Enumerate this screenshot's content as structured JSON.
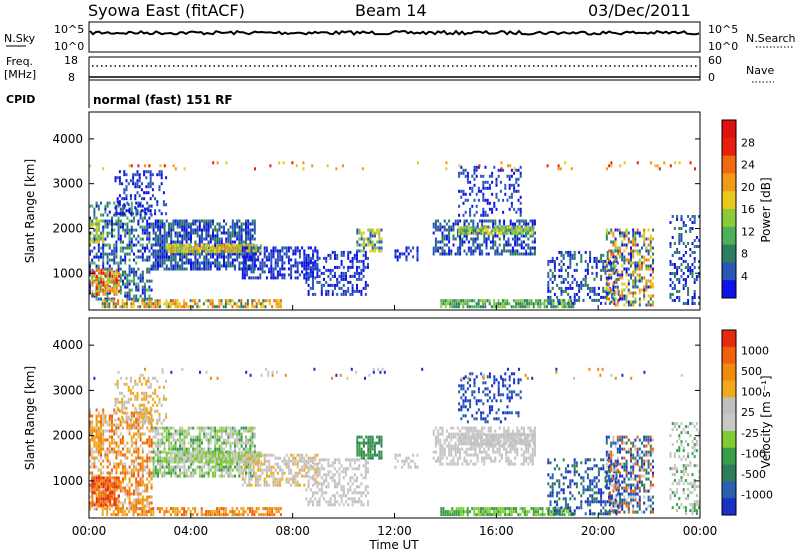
{
  "header": {
    "station": "Syowa East (fitACF)",
    "beam": "Beam 14",
    "date": "03/Dec/2011"
  },
  "noise_panel": {
    "left_label": "N.Sky",
    "right_label": "N.Search",
    "left_ticks": [
      "10^5",
      "10^0"
    ],
    "right_ticks": [
      "10^5",
      "10^0"
    ]
  },
  "freq_panel": {
    "left_label_line1": "Freq.",
    "left_label_line2": "[MHz]",
    "right_label": "Nave",
    "left_ticks": [
      "18",
      "8"
    ],
    "right_ticks": [
      "60",
      "0"
    ]
  },
  "cpid_panel": {
    "label": "CPID",
    "text": "normal (fast) 151 RF"
  },
  "x_axis": {
    "title": "Time UT",
    "tick_labels": [
      "00:00",
      "04:00",
      "08:00",
      "12:00",
      "16:00",
      "20:00",
      "00:00"
    ]
  },
  "power_panel": {
    "ylabel": "Slant Range [km]",
    "yticks": [
      "1000",
      "2000",
      "3000",
      "4000"
    ],
    "colorbar_label": "Power [dB]",
    "colorbar_ticks": [
      "4",
      "8",
      "12",
      "16",
      "20",
      "24",
      "28"
    ],
    "colors": [
      "#1010e8",
      "#2a56b8",
      "#2e7d62",
      "#4fae5a",
      "#8acb3c",
      "#e8c81a",
      "#f09a16",
      "#f06a10",
      "#e81e0e",
      "#e01010"
    ]
  },
  "velocity_panel": {
    "ylabel": "Slant Range [km]",
    "yticks": [
      "1000",
      "2000",
      "3000",
      "4000"
    ],
    "colorbar_label": "Velocity [m s⁻¹]",
    "colorbar_ticks": [
      "1000",
      "500",
      "100",
      "25",
      "-25",
      "-100",
      "-500",
      "-1000"
    ],
    "colors": [
      "#1a30c8",
      "#2b5fb0",
      "#2e7d5a",
      "#3a9e48",
      "#7fcc34",
      "#c8c8c8",
      "#c0c0c0",
      "#f0a81c",
      "#f08a10",
      "#f0600e",
      "#e82a0e"
    ]
  },
  "chart_data": {
    "type": "heatmap",
    "x_unit": "hours UT",
    "xlim": [
      0,
      24
    ],
    "ylim_km": [
      180,
      4600
    ],
    "blobs": [
      {
        "t0": 0.0,
        "t1": 2.5,
        "r0": 400,
        "r1": 2600,
        "d": 0.55,
        "pal": [
          0,
          1,
          2,
          3
        ],
        "vel": [
          5,
          7,
          8,
          9
        ]
      },
      {
        "t0": 0.1,
        "t1": 1.2,
        "r0": 500,
        "r1": 1100,
        "d": 0.85,
        "pal": [
          4,
          5,
          6,
          7,
          8
        ],
        "vel": [
          8,
          9,
          10
        ]
      },
      {
        "t0": 0.0,
        "t1": 0.6,
        "r0": 1700,
        "r1": 2200,
        "d": 0.7,
        "pal": [
          3,
          4,
          5
        ],
        "vel": [
          7,
          8
        ]
      },
      {
        "t0": 1.0,
        "t1": 3.0,
        "r0": 2300,
        "r1": 3300,
        "d": 0.35,
        "pal": [
          0,
          1
        ],
        "vel": [
          6,
          7
        ]
      },
      {
        "t0": 2.5,
        "t1": 6.5,
        "r0": 1100,
        "r1": 2200,
        "d": 0.75,
        "pal": [
          0,
          1,
          2
        ],
        "vel": [
          3,
          4,
          5,
          6
        ]
      },
      {
        "t0": 3.0,
        "t1": 6.8,
        "r0": 1450,
        "r1": 1650,
        "d": 0.9,
        "pal": [
          4,
          5,
          6
        ],
        "vel": [
          4,
          5
        ]
      },
      {
        "t0": 6.0,
        "t1": 9.0,
        "r0": 900,
        "r1": 1600,
        "d": 0.6,
        "pal": [
          0,
          1
        ],
        "vel": [
          5,
          6,
          7
        ]
      },
      {
        "t0": 0.5,
        "t1": 7.5,
        "r0": 280,
        "r1": 420,
        "d": 0.65,
        "pal": [
          2,
          5,
          6,
          7
        ],
        "vel": [
          7,
          8,
          9
        ]
      },
      {
        "t0": 8.5,
        "t1": 11.0,
        "r0": 500,
        "r1": 1500,
        "d": 0.45,
        "pal": [
          0,
          1
        ],
        "vel": [
          5,
          6
        ]
      },
      {
        "t0": 10.5,
        "t1": 11.5,
        "r0": 1500,
        "r1": 2000,
        "d": 0.7,
        "pal": [
          1,
          4,
          5
        ],
        "vel": [
          2,
          3
        ]
      },
      {
        "t0": 12.0,
        "t1": 12.9,
        "r0": 1300,
        "r1": 1600,
        "d": 0.5,
        "pal": [
          0,
          1
        ],
        "vel": [
          5,
          6
        ]
      },
      {
        "t0": 13.5,
        "t1": 17.5,
        "r0": 1400,
        "r1": 2200,
        "d": 0.55,
        "pal": [
          0,
          1,
          2
        ],
        "vel": [
          5,
          6
        ]
      },
      {
        "t0": 14.5,
        "t1": 17.5,
        "r0": 1850,
        "r1": 2050,
        "d": 0.85,
        "pal": [
          3,
          4,
          5
        ],
        "vel": [
          5,
          6
        ]
      },
      {
        "t0": 14.5,
        "t1": 17.0,
        "r0": 2300,
        "r1": 3400,
        "d": 0.3,
        "pal": [
          0,
          1
        ],
        "vel": [
          0,
          1
        ]
      },
      {
        "t0": 13.8,
        "t1": 19.0,
        "r0": 280,
        "r1": 420,
        "d": 0.8,
        "pal": [
          2,
          3,
          4
        ],
        "vel": [
          3,
          4
        ]
      },
      {
        "t0": 18.0,
        "t1": 20.8,
        "r0": 300,
        "r1": 1500,
        "d": 0.35,
        "pal": [
          0,
          1,
          2
        ],
        "vel": [
          0,
          1,
          2
        ]
      },
      {
        "t0": 20.3,
        "t1": 22.2,
        "r0": 300,
        "r1": 2000,
        "d": 0.55,
        "pal": [
          0,
          1,
          2,
          4,
          5,
          6,
          7
        ],
        "vel": [
          0,
          1,
          2,
          5,
          9
        ]
      },
      {
        "t0": 22.8,
        "t1": 24.0,
        "r0": 300,
        "r1": 2300,
        "d": 0.35,
        "pal": [
          0,
          1,
          2
        ],
        "vel": [
          3,
          5,
          6
        ]
      },
      {
        "t0": 0.0,
        "t1": 24.0,
        "r0": 3300,
        "r1": 3500,
        "d": 0.06,
        "pal": [
          5,
          6,
          8
        ],
        "vel": [
          0,
          5,
          8
        ]
      }
    ]
  }
}
